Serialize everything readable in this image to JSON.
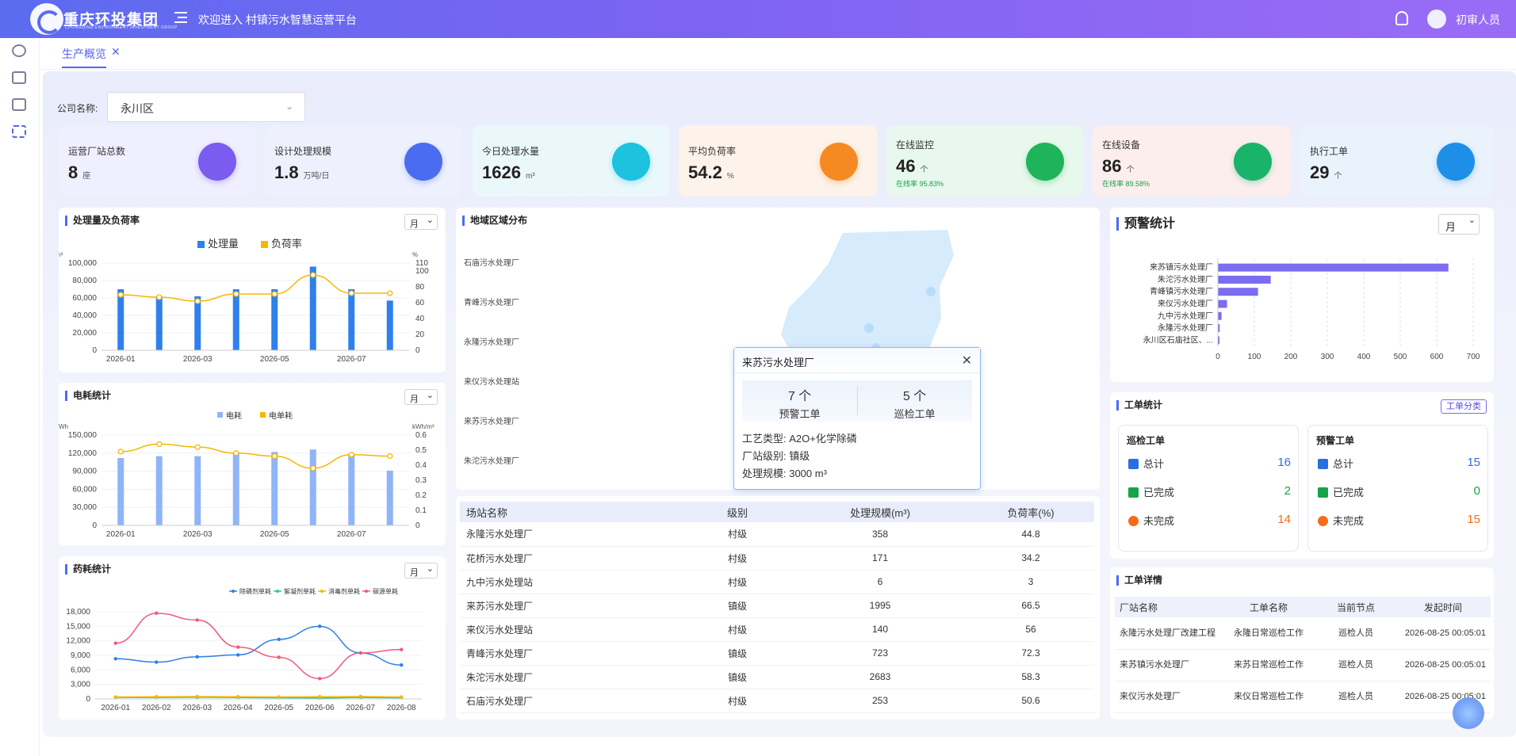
{
  "header": {
    "brand": "重庆环投集团",
    "brand_sub": "CHONGQING ENVIRONMENT INVESTMENT GROUP",
    "welcome": "欢迎进入 村镇污水智慧运营平台",
    "username": "初审人员"
  },
  "tabs": [
    {
      "label": "生产概览",
      "close": "✕"
    }
  ],
  "filter": {
    "label": "公司名称:",
    "value": "永川区"
  },
  "stats": [
    {
      "label": "运营厂站总数",
      "value": "8",
      "unit": "座",
      "bg": "#f0efff",
      "icon_color": "#7b5cf0",
      "icon": "house-icon"
    },
    {
      "label": "设计处理规模",
      "value": "1.8",
      "unit": "万吨/日",
      "bg": "#eef1fd",
      "icon_color": "#4a6cf0",
      "icon": "house-sync-icon"
    },
    {
      "label": "今日处理水量",
      "value": "1626",
      "unit": "m³",
      "bg": "#eaf8fb",
      "icon_color": "#1cc2e0",
      "icon": "water-drop-icon"
    },
    {
      "label": "平均负荷率",
      "value": "54.2",
      "unit": "%",
      "bg": "#fdf3ea",
      "icon_color": "#f58a22",
      "icon": "clipboard-icon"
    },
    {
      "label": "在线监控",
      "value": "46",
      "unit": "个",
      "rate": "在线率 95.83%",
      "bg": "#e9f8ee",
      "icon_color": "#1fb45a",
      "icon": "camera-icon"
    },
    {
      "label": "在线设备",
      "value": "86",
      "unit": "个",
      "rate": "在线率 89.58%",
      "bg": "#fdeeee",
      "icon_color": "#19b36a",
      "icon": "monitor-chart-icon"
    },
    {
      "label": "执行工单",
      "value": "29",
      "unit": "个",
      "bg": "#eaf2fc",
      "icon_color": "#1e8fe8",
      "icon": "sliders-icon"
    }
  ],
  "panels": {
    "treatment": {
      "title": "处理量及负荷率",
      "select": "月"
    },
    "power": {
      "title": "电耗统计",
      "select": "月"
    },
    "chem": {
      "title": "药耗统计",
      "select": "月"
    },
    "region": {
      "title": "地域区域分布"
    },
    "alert": {
      "title": "预警统计",
      "select": "月"
    },
    "workorder": {
      "title": "工单统计",
      "category_btn": "工单分类"
    },
    "detail": {
      "title": "工单详情"
    }
  },
  "region_labels": [
    "石庙污水处理厂",
    "青峰污水处理厂",
    "永隆污水处理厂",
    "来仪污水处理站",
    "来苏污水处理厂",
    "朱沱污水处理厂"
  ],
  "popup": {
    "title": "来苏污水处理厂",
    "close": "✕",
    "alert_count": "7 个",
    "alert_label": "预警工单",
    "patrol_count": "5 个",
    "patrol_label": "巡检工单",
    "process": "工艺类型: A2O+化学除磷",
    "level": "厂站级别: 镇级",
    "scale": "处理规模: 3000 m³"
  },
  "station_table": {
    "headers": [
      "场站名称",
      "级别",
      "处理规模(m³)",
      "负荷率(%)"
    ],
    "rows": [
      [
        "永隆污水处理厂",
        "村级",
        "358",
        "44.8"
      ],
      [
        "花桥污水处理厂",
        "村级",
        "171",
        "34.2"
      ],
      [
        "九中污水处理站",
        "村级",
        "6",
        "3"
      ],
      [
        "来苏污水处理厂",
        "镇级",
        "1995",
        "66.5"
      ],
      [
        "来仪污水处理站",
        "村级",
        "140",
        "56"
      ],
      [
        "青峰污水处理厂",
        "镇级",
        "723",
        "72.3"
      ],
      [
        "朱沱污水处理厂",
        "镇级",
        "2683",
        "58.3"
      ],
      [
        "石庙污水处理厂",
        "村级",
        "253",
        "50.6"
      ]
    ]
  },
  "workorder": {
    "patrol": {
      "title": "巡检工单",
      "rows": [
        {
          "label": "总计",
          "value": "16",
          "color": "#2a6fe0"
        },
        {
          "label": "已完成",
          "value": "2",
          "color": "#16a34a"
        },
        {
          "label": "未完成",
          "value": "14",
          "color": "#f56c1a"
        }
      ]
    },
    "alert": {
      "title": "预警工单",
      "rows": [
        {
          "label": "总计",
          "value": "15",
          "color": "#2a6fe0"
        },
        {
          "label": "已完成",
          "value": "0",
          "color": "#16a34a"
        },
        {
          "label": "未完成",
          "value": "15",
          "color": "#f56c1a"
        }
      ]
    }
  },
  "detail_table": {
    "headers": [
      "厂站名称",
      "工单名称",
      "当前节点",
      "发起时间"
    ],
    "rows": [
      [
        "永隆污水处理厂改建工程",
        "永隆日常巡检工作",
        "巡检人员",
        "2026-08-25 00:05:01"
      ],
      [
        "来苏镇污水处理厂",
        "来苏日常巡检工作",
        "巡检人员",
        "2026-08-25 00:05:01"
      ],
      [
        "来仪污水处理厂",
        "来仪日常巡检工作",
        "巡检人员",
        "2026-08-25 00:05:01"
      ]
    ]
  },
  "chart_data": [
    {
      "type": "bar+line",
      "title": "处理量及负荷率",
      "categories": [
        "2026-01",
        "2026-02",
        "2026-03",
        "2026-04",
        "2026-05",
        "2026-06",
        "2026-07",
        "2026-08"
      ],
      "x_tick_labels": [
        "2026-01",
        "2026-03",
        "2026-05",
        "2026-07"
      ],
      "series": [
        {
          "name": "处理量",
          "type": "bar",
          "values": [
            70000,
            62000,
            62000,
            70000,
            70000,
            96000,
            70000,
            57000
          ],
          "color": "#2f80ed"
        },
        {
          "name": "负荷率",
          "type": "line",
          "values": [
            70,
            67,
            62,
            71,
            71,
            95,
            72,
            72
          ],
          "color": "#f5b800"
        }
      ],
      "y_left": {
        "unit": "m³",
        "ticks": [
          "100,000",
          "80,000",
          "60,000",
          "40,000",
          "20,000",
          "0"
        ],
        "range": [
          0,
          100000
        ]
      },
      "y_right": {
        "unit": "%",
        "ticks": [
          "110",
          "100",
          "80",
          "60",
          "40",
          "20",
          "0"
        ],
        "range": [
          0,
          110
        ]
      }
    },
    {
      "type": "bar+line",
      "title": "电耗统计",
      "categories": [
        "2026-01",
        "2026-02",
        "2026-03",
        "2026-04",
        "2026-05",
        "2026-06",
        "2026-07",
        "2026-08"
      ],
      "x_tick_labels": [
        "2026-01",
        "2026-03",
        "2026-05",
        "2026-07"
      ],
      "series": [
        {
          "name": "电耗",
          "type": "bar",
          "values": [
            112000,
            115000,
            115000,
            120000,
            122000,
            126000,
            117000,
            91000
          ],
          "color": "#8fb4f7"
        },
        {
          "name": "电单耗",
          "type": "line",
          "values": [
            0.49,
            0.54,
            0.52,
            0.48,
            0.46,
            0.38,
            0.47,
            0.46
          ],
          "color": "#f5b800"
        }
      ],
      "y_left": {
        "unit": "kWh",
        "ticks": [
          "150,000",
          "120,000",
          "90,000",
          "60,000",
          "30,000",
          "0"
        ],
        "range": [
          0,
          150000
        ]
      },
      "y_right": {
        "unit": "kWh/m³",
        "ticks": [
          "0.6",
          "0.5",
          "0.4",
          "0.3",
          "0.2",
          "0.1",
          "0"
        ],
        "range": [
          0,
          0.6
        ]
      }
    },
    {
      "type": "line",
      "title": "药耗统计",
      "categories": [
        "2026-01",
        "2026-02",
        "2026-03",
        "2026-04",
        "2026-05",
        "2026-06",
        "2026-07",
        "2026-08"
      ],
      "series": [
        {
          "name": "除磷剂单耗",
          "values": [
            8300,
            7600,
            8700,
            9100,
            12300,
            15000,
            9500,
            7000
          ],
          "color": "#2f7fe8"
        },
        {
          "name": "絮凝剂单耗",
          "values": [
            300,
            300,
            350,
            300,
            250,
            200,
            300,
            250
          ],
          "color": "#2fc59a"
        },
        {
          "name": "消毒剂单耗",
          "values": [
            400,
            450,
            500,
            450,
            400,
            450,
            500,
            400
          ],
          "color": "#f5b800"
        },
        {
          "name": "碳源单耗",
          "values": [
            11500,
            17700,
            16300,
            10700,
            8600,
            4200,
            9500,
            10200
          ],
          "color": "#f25a7a"
        }
      ],
      "y": {
        "ticks": [
          "18,000",
          "15,000",
          "12,000",
          "9,000",
          "6,000",
          "3,000",
          "0"
        ],
        "range": [
          0,
          18000
        ]
      }
    },
    {
      "type": "bar",
      "orientation": "horizontal",
      "title": "预警统计",
      "categories": [
        "来苏镇污水处理厂",
        "朱沱污水处理厂",
        "青峰镇污水处理厂",
        "来仪污水处理厂",
        "九中污水处理厂",
        "永隆污水处理厂",
        "永川区石庙社区、..."
      ],
      "values": [
        632,
        145,
        110,
        25,
        10,
        5,
        3
      ],
      "color": "#7b6cf0",
      "x": {
        "ticks": [
          "0",
          "100",
          "200",
          "300",
          "400",
          "500",
          "600",
          "700"
        ],
        "range": [
          0,
          700
        ]
      }
    }
  ]
}
